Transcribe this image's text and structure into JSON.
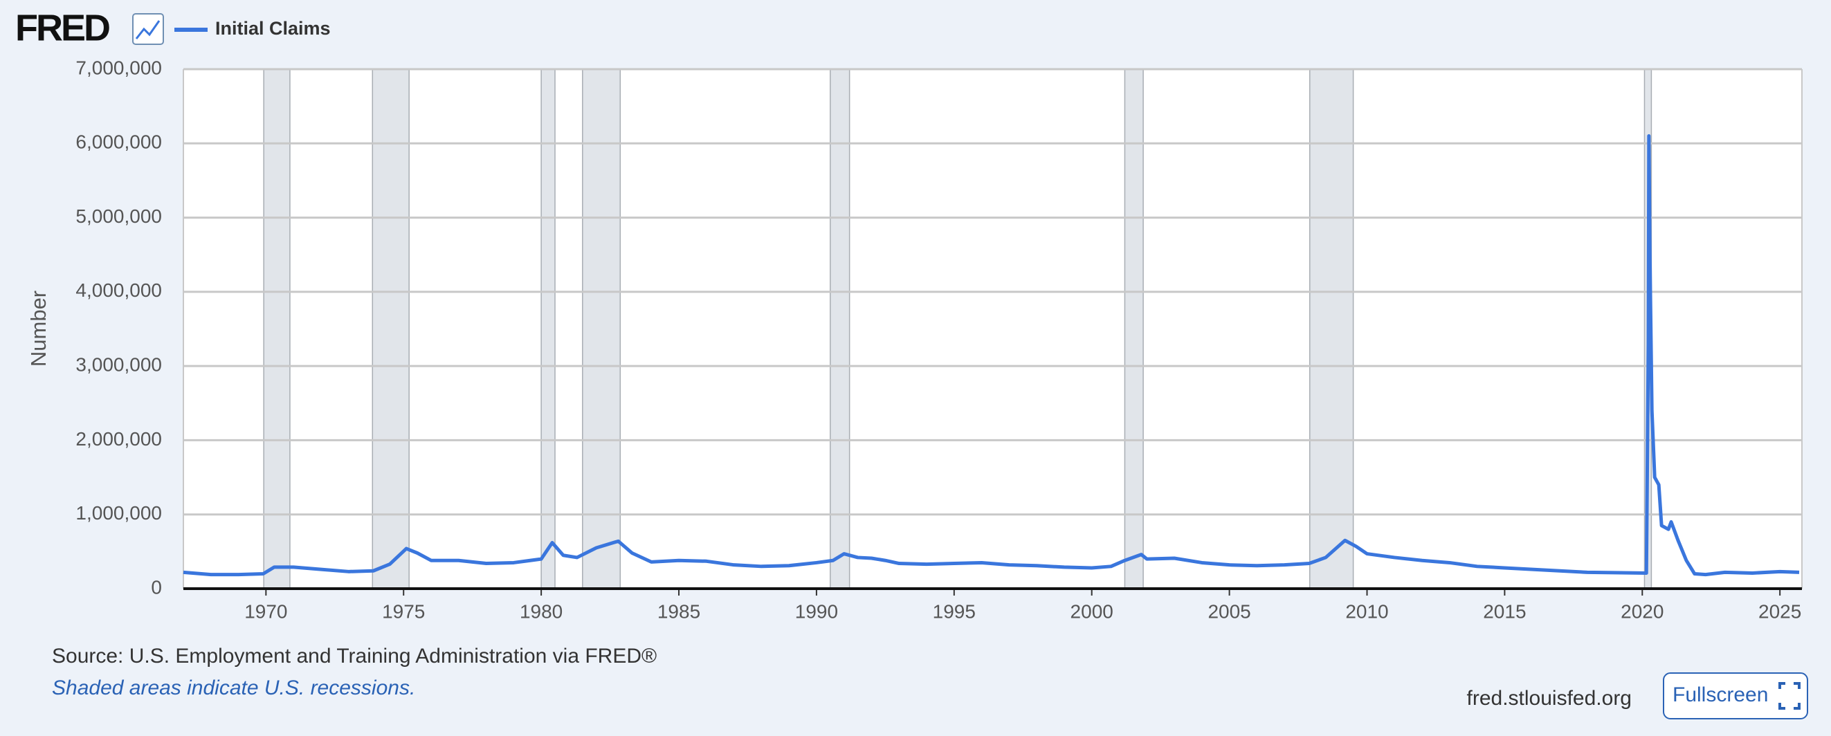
{
  "header": {
    "logo": "FRED"
  },
  "chart_data": {
    "type": "line",
    "y_label": "Number",
    "xlim": [
      1967.0,
      2025.8
    ],
    "ylim": [
      0,
      7000000
    ],
    "xticks": [
      1970,
      1975,
      1980,
      1985,
      1990,
      1995,
      2000,
      2005,
      2010,
      2015,
      2020,
      2025
    ],
    "yticks": [
      0,
      {
        "value": 1000000,
        "label": "1,000,000"
      },
      {
        "value": 2000000,
        "label": "2,000,000"
      },
      {
        "value": 3000000,
        "label": "3,000,000"
      },
      {
        "value": 4000000,
        "label": "4,000,000"
      },
      {
        "value": 5000000,
        "label": "5,000,000"
      },
      {
        "value": 6000000,
        "label": "6,000,000"
      },
      {
        "value": 7000000,
        "label": "7,000,000"
      }
    ],
    "grid": true,
    "recessions": [
      [
        1969.92,
        1970.87
      ],
      [
        1973.87,
        1975.2
      ],
      [
        1980.0,
        1980.5
      ],
      [
        1981.5,
        1982.87
      ],
      [
        1990.5,
        1991.2
      ],
      [
        2001.2,
        2001.87
      ],
      [
        2007.92,
        2009.5
      ],
      [
        2020.08,
        2020.33
      ]
    ],
    "series": [
      {
        "name": "Initial Claims",
        "color": "#3a76dd",
        "x": [
          1967.0,
          1968.0,
          1969.0,
          1969.9,
          1970.3,
          1971.0,
          1972.0,
          1973.0,
          1973.9,
          1974.5,
          1975.1,
          1975.5,
          1976.0,
          1977.0,
          1978.0,
          1979.0,
          1980.0,
          1980.4,
          1980.8,
          1981.3,
          1982.0,
          1982.8,
          1983.3,
          1984.0,
          1985.0,
          1986.0,
          1987.0,
          1988.0,
          1989.0,
          1990.0,
          1990.6,
          1991.0,
          1991.5,
          1992.0,
          1992.5,
          1993.0,
          1994.0,
          1995.0,
          1996.0,
          1997.0,
          1998.0,
          1999.0,
          2000.0,
          2000.7,
          2001.2,
          2001.8,
          2002.0,
          2003.0,
          2004.0,
          2005.0,
          2006.0,
          2007.0,
          2007.9,
          2008.5,
          2009.2,
          2009.6,
          2010.0,
          2011.0,
          2012.0,
          2013.0,
          2014.0,
          2015.0,
          2016.0,
          2017.0,
          2018.0,
          2019.0,
          2020.15,
          2020.22,
          2020.24,
          2020.28,
          2020.35,
          2020.45,
          2020.6,
          2020.7,
          2020.95,
          2021.05,
          2021.3,
          2021.6,
          2021.9,
          2022.3,
          2023.0,
          2024.0,
          2025.0,
          2025.7
        ],
        "values": [
          220000,
          190000,
          190000,
          200000,
          290000,
          290000,
          260000,
          230000,
          240000,
          330000,
          540000,
          480000,
          380000,
          380000,
          340000,
          350000,
          400000,
          620000,
          450000,
          420000,
          550000,
          640000,
          480000,
          360000,
          380000,
          370000,
          320000,
          300000,
          310000,
          350000,
          380000,
          470000,
          420000,
          410000,
          380000,
          340000,
          330000,
          340000,
          350000,
          320000,
          310000,
          290000,
          280000,
          300000,
          380000,
          460000,
          400000,
          410000,
          350000,
          320000,
          310000,
          320000,
          340000,
          420000,
          650000,
          570000,
          470000,
          420000,
          380000,
          350000,
          300000,
          280000,
          260000,
          240000,
          220000,
          215000,
          210000,
          3300000,
          6100000,
          4400000,
          2400000,
          1500000,
          1400000,
          850000,
          800000,
          900000,
          650000,
          380000,
          200000,
          190000,
          220000,
          210000,
          230000,
          220000
        ]
      }
    ]
  },
  "footer": {
    "source": "Source: U.S. Employment and Training Administration via FRED®",
    "note": "Shaded areas indicate U.S. recessions.",
    "site": "fred.stlouisfed.org",
    "button": "Fullscreen"
  }
}
